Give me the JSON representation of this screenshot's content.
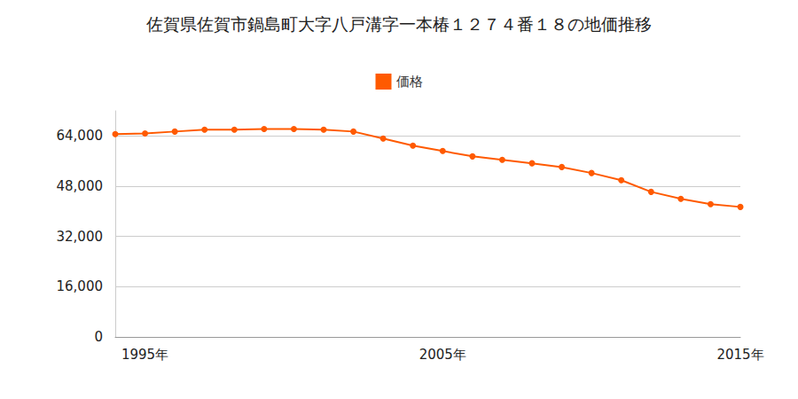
{
  "chart_data": {
    "type": "line",
    "title": "佐賀県佐賀市鍋島町大字八戸溝字一本椿１２７４番１８の地価推移",
    "x": [
      1994,
      1995,
      1996,
      1997,
      1998,
      1999,
      2000,
      2001,
      2002,
      2003,
      2004,
      2005,
      2006,
      2007,
      2008,
      2009,
      2010,
      2011,
      2012,
      2013,
      2014,
      2015
    ],
    "series": [
      {
        "name": "価格",
        "color": "#ff5a00",
        "values": [
          64600,
          64800,
          65400,
          66000,
          66000,
          66200,
          66200,
          66000,
          65400,
          63200,
          60900,
          59200,
          57500,
          56400,
          55300,
          54100,
          52200,
          49900,
          46200,
          44000,
          42300,
          41400
        ]
      }
    ],
    "xlim": [
      1994,
      2015
    ],
    "xticks": [
      {
        "value": 1995,
        "label": "1995年"
      },
      {
        "value": 2005,
        "label": "2005年"
      },
      {
        "value": 2015,
        "label": "2015年"
      }
    ],
    "ylim": [
      0,
      72000
    ],
    "yticks": [
      0,
      {
        "value": 16000,
        "label": "16,000"
      },
      {
        "value": 32000,
        "label": "32,000"
      },
      {
        "value": 48000,
        "label": "48,000"
      },
      {
        "value": 64000,
        "label": "64,000"
      }
    ],
    "grid": true,
    "legend": "top",
    "marker": "circle"
  }
}
